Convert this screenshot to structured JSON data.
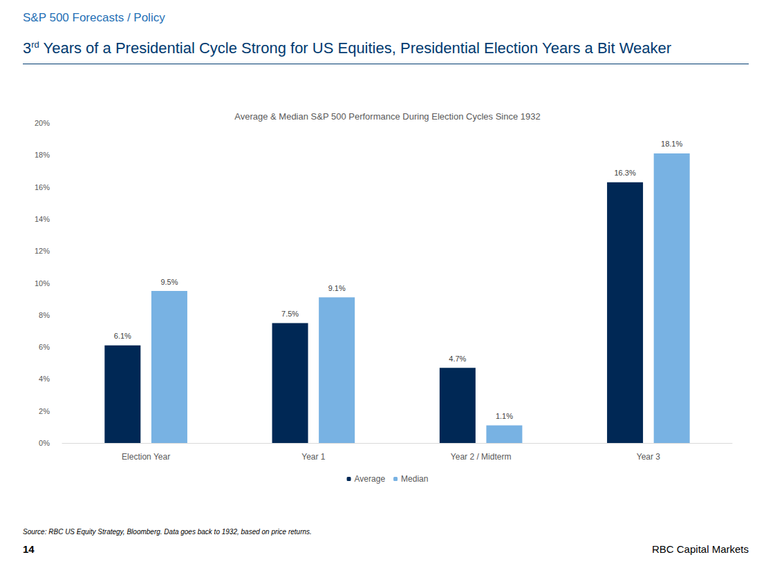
{
  "slide": {
    "header": "S&P 500 Forecasts / Policy",
    "title": "3rd Years of a Presidential Cycle Strong for US Equities, Presidential Election Years a Bit Weaker",
    "source": "Source: RBC US Equity Strategy, Bloomberg. Data goes back to 1932, based on price returns.",
    "page": "14",
    "footer": "RBC Capital Markets"
  },
  "chart_data": {
    "type": "bar",
    "title": "Average & Median S&P 500 Performance During Election Cycles Since 1932",
    "categories": [
      "Election Year",
      "Year 1",
      "Year 2 / Midterm",
      "Year 3"
    ],
    "series": [
      {
        "name": "Average",
        "color": "#002855",
        "values": [
          6.1,
          7.5,
          4.7,
          16.3
        ],
        "value_labels": [
          "6.1%",
          "7.5%",
          "4.7%",
          "16.3%"
        ]
      },
      {
        "name": "Median",
        "color": "#78b2e3",
        "values": [
          9.5,
          9.1,
          1.1,
          18.1
        ],
        "value_labels": [
          "9.5%",
          "9.1%",
          "1.1%",
          "18.1%"
        ]
      }
    ],
    "ylim": [
      0,
      20
    ],
    "yticks": [
      {
        "value": 0,
        "label": "0%"
      },
      {
        "value": 2,
        "label": "2%"
      },
      {
        "value": 4,
        "label": "4%"
      },
      {
        "value": 6,
        "label": "6%"
      },
      {
        "value": 8,
        "label": "8%"
      },
      {
        "value": 10,
        "label": "10%"
      },
      {
        "value": 12,
        "label": "12%"
      },
      {
        "value": 14,
        "label": "14%"
      },
      {
        "value": 16,
        "label": "16%"
      },
      {
        "value": 18,
        "label": "18%"
      },
      {
        "value": 20,
        "label": "20%"
      }
    ],
    "grid": false,
    "legend": "bottom",
    "data_labels": true
  }
}
